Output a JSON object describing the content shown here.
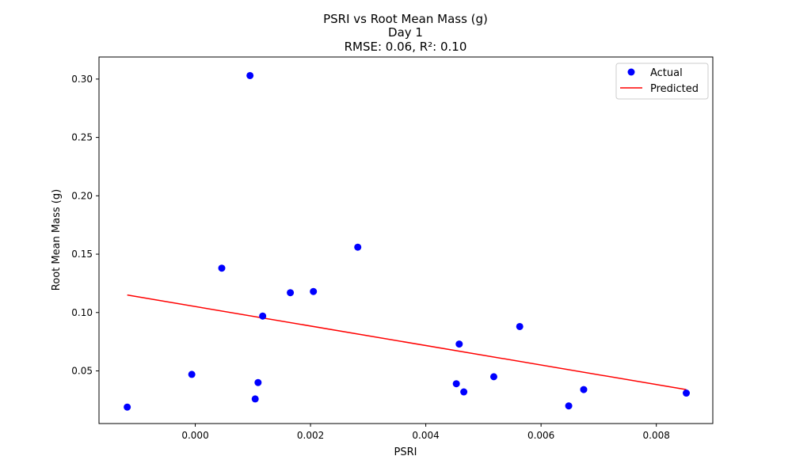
{
  "chart_data": {
    "type": "scatter",
    "title_lines": [
      "PSRI vs Root Mean Mass (g)",
      "Day 1",
      "RMSE: 0.06, R²: 0.10"
    ],
    "xlabel": "PSRI",
    "ylabel": "Root Mean Mass (g)",
    "xlim": [
      -0.00167,
      0.00898
    ],
    "ylim": [
      0.0049,
      0.3189
    ],
    "x_ticks": [
      0.0,
      0.002,
      0.004,
      0.006,
      0.008
    ],
    "x_tick_labels": [
      "0.000",
      "0.002",
      "0.004",
      "0.006",
      "0.008"
    ],
    "y_ticks": [
      0.05,
      0.1,
      0.15,
      0.2,
      0.25,
      0.3
    ],
    "y_tick_labels": [
      "0.05",
      "0.10",
      "0.15",
      "0.20",
      "0.25",
      "0.30"
    ],
    "grid": false,
    "legend_position": "top-right",
    "series": [
      {
        "name": "Actual",
        "kind": "scatter",
        "color": "#0000ff",
        "x": [
          -0.00118,
          -6e-05,
          0.00046,
          0.00095,
          0.00104,
          0.00109,
          0.00117,
          0.00165,
          0.00205,
          0.00282,
          0.00453,
          0.00458,
          0.00466,
          0.00518,
          0.00563,
          0.00648,
          0.00674,
          0.00852
        ],
        "y": [
          0.019,
          0.047,
          0.138,
          0.303,
          0.026,
          0.04,
          0.097,
          0.117,
          0.118,
          0.156,
          0.039,
          0.073,
          0.032,
          0.045,
          0.088,
          0.02,
          0.034,
          0.031
        ]
      },
      {
        "name": "Predicted",
        "kind": "line",
        "color": "#ff0000",
        "x": [
          -0.00118,
          0.00852
        ],
        "y": [
          0.115,
          0.034
        ]
      }
    ]
  }
}
